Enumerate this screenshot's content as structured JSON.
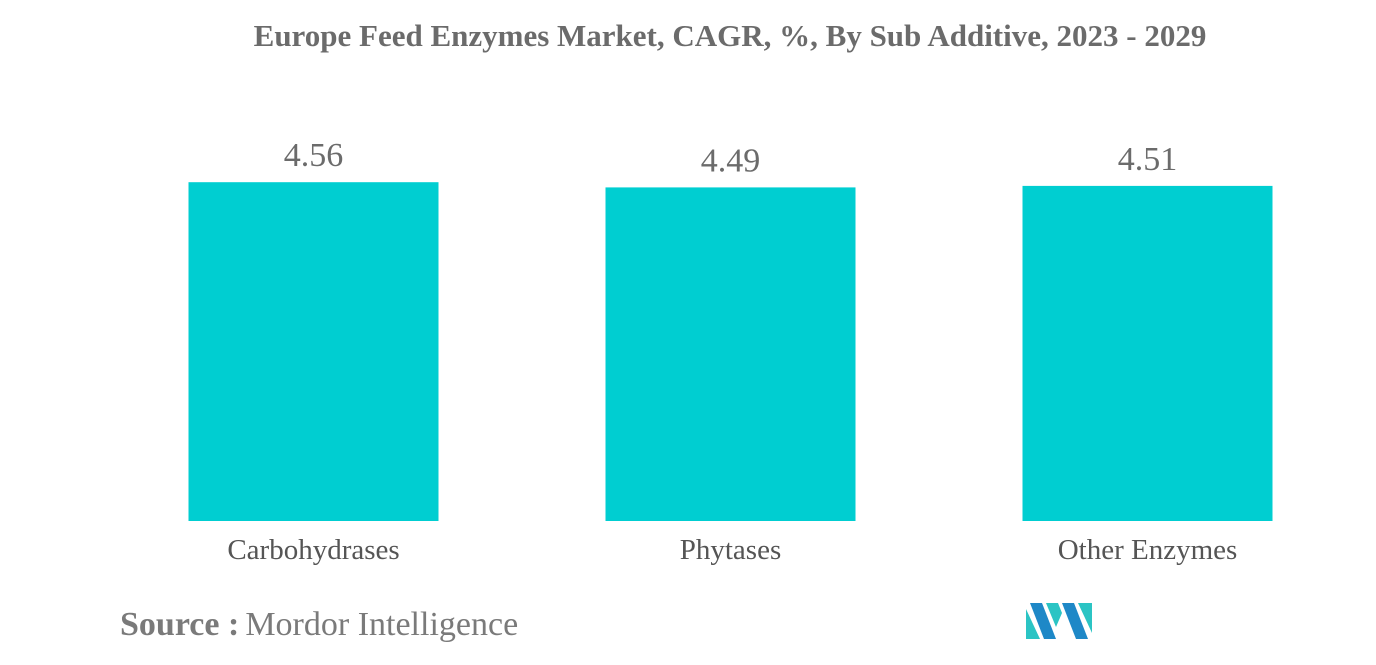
{
  "chart_data": {
    "type": "bar",
    "title": "Europe Feed Enzymes Market, CAGR, %, By Sub Additive, 2023 - 2029",
    "categories": [
      "Carbohydrases",
      "Phytases",
      "Other Enzymes"
    ],
    "values": [
      4.56,
      4.49,
      4.51
    ],
    "value_labels": [
      "4.56",
      "4.49",
      "4.51"
    ],
    "xlabel": "",
    "ylabel": "",
    "grid": false,
    "legend": "none",
    "bar_color": "#00ced1"
  },
  "source": {
    "label": "Source :",
    "value": "Mordor Intelligence"
  },
  "logo": {
    "icon": "mordor-intelligence-logo-icon",
    "colors": [
      "#1e88c7",
      "#2bc4c4"
    ]
  }
}
